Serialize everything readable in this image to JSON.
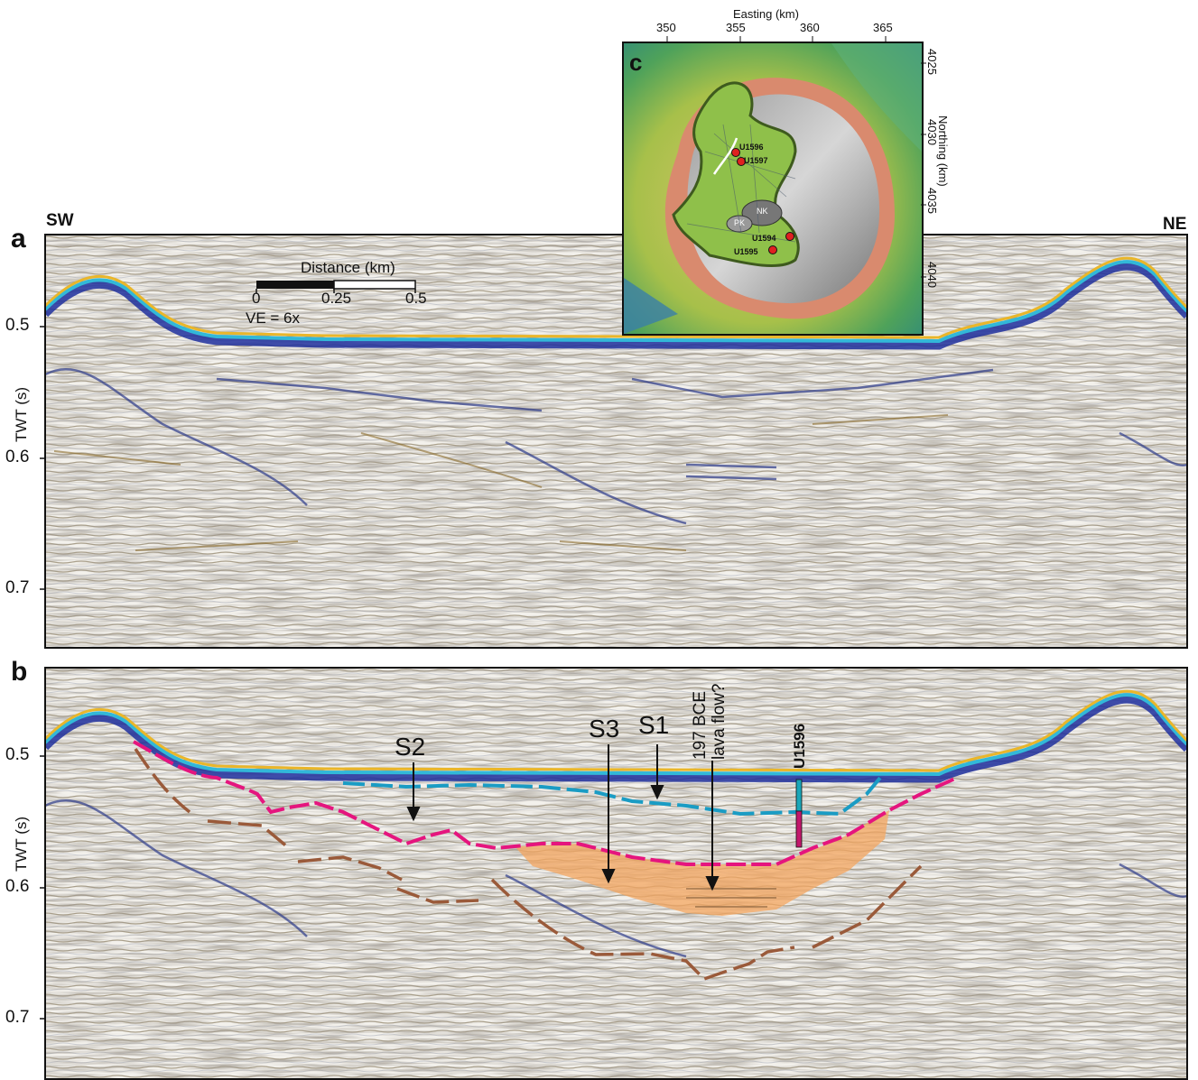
{
  "panel_a": {
    "letter": "a",
    "left_dir": "SW",
    "right_dir": "NE"
  },
  "panel_b": {
    "letter": "b"
  },
  "panel_c": {
    "letter": "c"
  },
  "y_axis": {
    "title": "TWT (s)",
    "ticks": [
      "0.5",
      "0.6",
      "0.7"
    ]
  },
  "scale_bar": {
    "title": "Distance (km)",
    "ticks": [
      "0",
      "0.25",
      "0.5"
    ],
    "ve": "VE = 6x"
  },
  "interpretation": {
    "labels": {
      "s2": "S2",
      "s3": "S3",
      "s1": "S1",
      "lava_line1": "197 BCE",
      "lava_line2": "lava flow?",
      "well": "U1596"
    },
    "colors": {
      "pink": "#e5157e",
      "cyan": "#1a9cc4",
      "brown": "#9a5a3a",
      "orange_fill": "#f4a55f"
    }
  },
  "map": {
    "easting_title": "Easting (km)",
    "easting_ticks": [
      "350",
      "355",
      "360",
      "365"
    ],
    "northing_title": "Northing (km)",
    "northing_ticks": [
      "4025",
      "4030",
      "4035",
      "4040"
    ],
    "wells": [
      "U1596",
      "U1597",
      "U1594",
      "U1595"
    ],
    "islands": [
      "NK",
      "PK"
    ]
  }
}
